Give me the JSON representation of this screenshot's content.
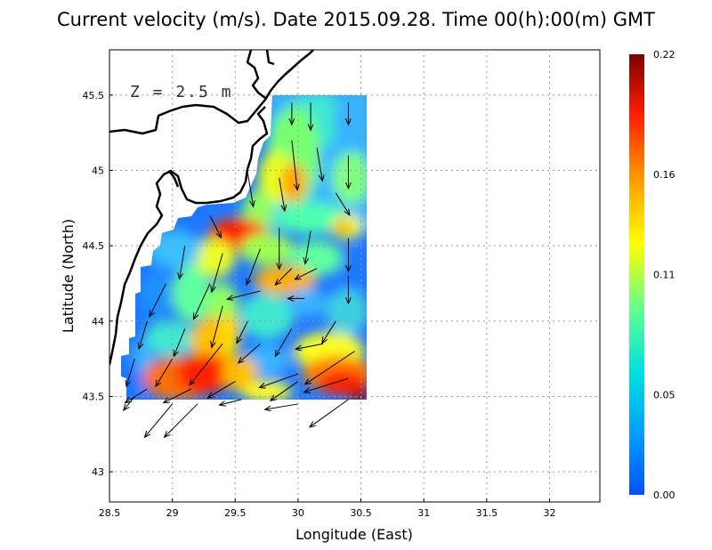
{
  "title": "Current velocity (m/s). Date 2015.09.28. Time 00(h):00(m) GMT",
  "depth_label": "Z = 2.5 m",
  "chart_data": {
    "type": "heatmap",
    "title": "Current velocity (m/s). Date 2015.09.28. Time 00(h):00(m) GMT",
    "xlabel": "Longitude (East)",
    "ylabel": "Latitude (North)",
    "xlim": [
      28.5,
      32.4
    ],
    "ylim": [
      42.8,
      45.8
    ],
    "xticks": [
      "28.5",
      "29",
      "29.5",
      "30",
      "30.5",
      "31",
      "31.5",
      "32"
    ],
    "yticks": [
      "43",
      "43.5",
      "44",
      "44.5",
      "45",
      "45.5"
    ],
    "grid": true,
    "colorbar": {
      "min": 0.0,
      "max": 0.22,
      "tick_labels": [
        "0.00",
        "0.05",
        "0.11",
        "0.16",
        "0.22"
      ],
      "colormap": [
        "#0050ff",
        "#00a0ff",
        "#00e0e0",
        "#60ff90",
        "#ffff00",
        "#ffa000",
        "#ff2000",
        "#800000"
      ]
    },
    "arrows": [
      {
        "lon": 29.95,
        "lat": 45.45,
        "u": 0.0,
        "v": -0.08
      },
      {
        "lon": 30.1,
        "lat": 45.45,
        "u": 0.0,
        "v": -0.1
      },
      {
        "lon": 30.4,
        "lat": 45.45,
        "u": 0.0,
        "v": -0.08
      },
      {
        "lon": 29.95,
        "lat": 45.2,
        "u": 0.02,
        "v": -0.18
      },
      {
        "lon": 30.15,
        "lat": 45.15,
        "u": 0.02,
        "v": -0.12
      },
      {
        "lon": 30.4,
        "lat": 45.1,
        "u": 0.0,
        "v": -0.12
      },
      {
        "lon": 29.6,
        "lat": 44.98,
        "u": 0.02,
        "v": -0.12
      },
      {
        "lon": 29.85,
        "lat": 44.95,
        "u": 0.02,
        "v": -0.12
      },
      {
        "lon": 30.3,
        "lat": 44.85,
        "u": 0.05,
        "v": -0.08
      },
      {
        "lon": 29.3,
        "lat": 44.7,
        "u": 0.04,
        "v": -0.08
      },
      {
        "lon": 29.85,
        "lat": 44.62,
        "u": 0.0,
        "v": -0.15
      },
      {
        "lon": 30.1,
        "lat": 44.6,
        "u": -0.02,
        "v": -0.12
      },
      {
        "lon": 30.4,
        "lat": 44.55,
        "u": 0.0,
        "v": -0.12
      },
      {
        "lon": 29.1,
        "lat": 44.5,
        "u": -0.02,
        "v": -0.12
      },
      {
        "lon": 29.4,
        "lat": 44.45,
        "u": -0.04,
        "v": -0.14
      },
      {
        "lon": 29.7,
        "lat": 44.48,
        "u": -0.05,
        "v": -0.13
      },
      {
        "lon": 29.95,
        "lat": 44.35,
        "u": -0.06,
        "v": -0.06
      },
      {
        "lon": 30.15,
        "lat": 44.35,
        "u": -0.08,
        "v": -0.04
      },
      {
        "lon": 30.4,
        "lat": 44.3,
        "u": 0.0,
        "v": -0.1
      },
      {
        "lon": 28.95,
        "lat": 44.25,
        "u": -0.06,
        "v": -0.12
      },
      {
        "lon": 29.3,
        "lat": 44.25,
        "u": -0.06,
        "v": -0.13
      },
      {
        "lon": 29.7,
        "lat": 44.2,
        "u": -0.12,
        "v": -0.03
      },
      {
        "lon": 30.05,
        "lat": 44.15,
        "u": -0.06,
        "v": 0.0
      },
      {
        "lon": 30.3,
        "lat": 44.0,
        "u": -0.05,
        "v": -0.08
      },
      {
        "lon": 28.8,
        "lat": 44.0,
        "u": -0.03,
        "v": -0.1
      },
      {
        "lon": 29.1,
        "lat": 43.95,
        "u": -0.04,
        "v": -0.1
      },
      {
        "lon": 29.4,
        "lat": 44.1,
        "u": -0.04,
        "v": -0.15
      },
      {
        "lon": 29.6,
        "lat": 44.0,
        "u": -0.04,
        "v": -0.08
      },
      {
        "lon": 29.95,
        "lat": 43.95,
        "u": -0.06,
        "v": -0.1
      },
      {
        "lon": 30.2,
        "lat": 43.85,
        "u": -0.1,
        "v": -0.02
      },
      {
        "lon": 28.7,
        "lat": 43.75,
        "u": -0.03,
        "v": -0.1
      },
      {
        "lon": 29.0,
        "lat": 43.75,
        "u": -0.06,
        "v": -0.1
      },
      {
        "lon": 29.4,
        "lat": 43.85,
        "u": -0.12,
        "v": -0.15
      },
      {
        "lon": 29.7,
        "lat": 43.85,
        "u": -0.08,
        "v": -0.07
      },
      {
        "lon": 30.0,
        "lat": 43.65,
        "u": -0.14,
        "v": -0.05
      },
      {
        "lon": 30.45,
        "lat": 43.8,
        "u": -0.18,
        "v": -0.12
      },
      {
        "lon": 28.8,
        "lat": 43.55,
        "u": -0.08,
        "v": -0.05
      },
      {
        "lon": 29.15,
        "lat": 43.55,
        "u": -0.1,
        "v": -0.05
      },
      {
        "lon": 29.5,
        "lat": 43.6,
        "u": -0.1,
        "v": -0.06
      },
      {
        "lon": 30.0,
        "lat": 43.6,
        "u": -0.1,
        "v": -0.07
      },
      {
        "lon": 30.4,
        "lat": 43.62,
        "u": -0.16,
        "v": -0.05
      },
      {
        "lon": 28.7,
        "lat": 43.5,
        "u": -0.04,
        "v": -0.05
      },
      {
        "lon": 29.0,
        "lat": 43.45,
        "u": -0.1,
        "v": -0.12
      },
      {
        "lon": 29.2,
        "lat": 43.45,
        "u": -0.12,
        "v": -0.12
      },
      {
        "lon": 29.55,
        "lat": 43.48,
        "u": -0.08,
        "v": -0.02
      },
      {
        "lon": 30.0,
        "lat": 43.45,
        "u": -0.12,
        "v": -0.02
      },
      {
        "lon": 30.4,
        "lat": 43.48,
        "u": -0.14,
        "v": -0.1
      }
    ]
  }
}
